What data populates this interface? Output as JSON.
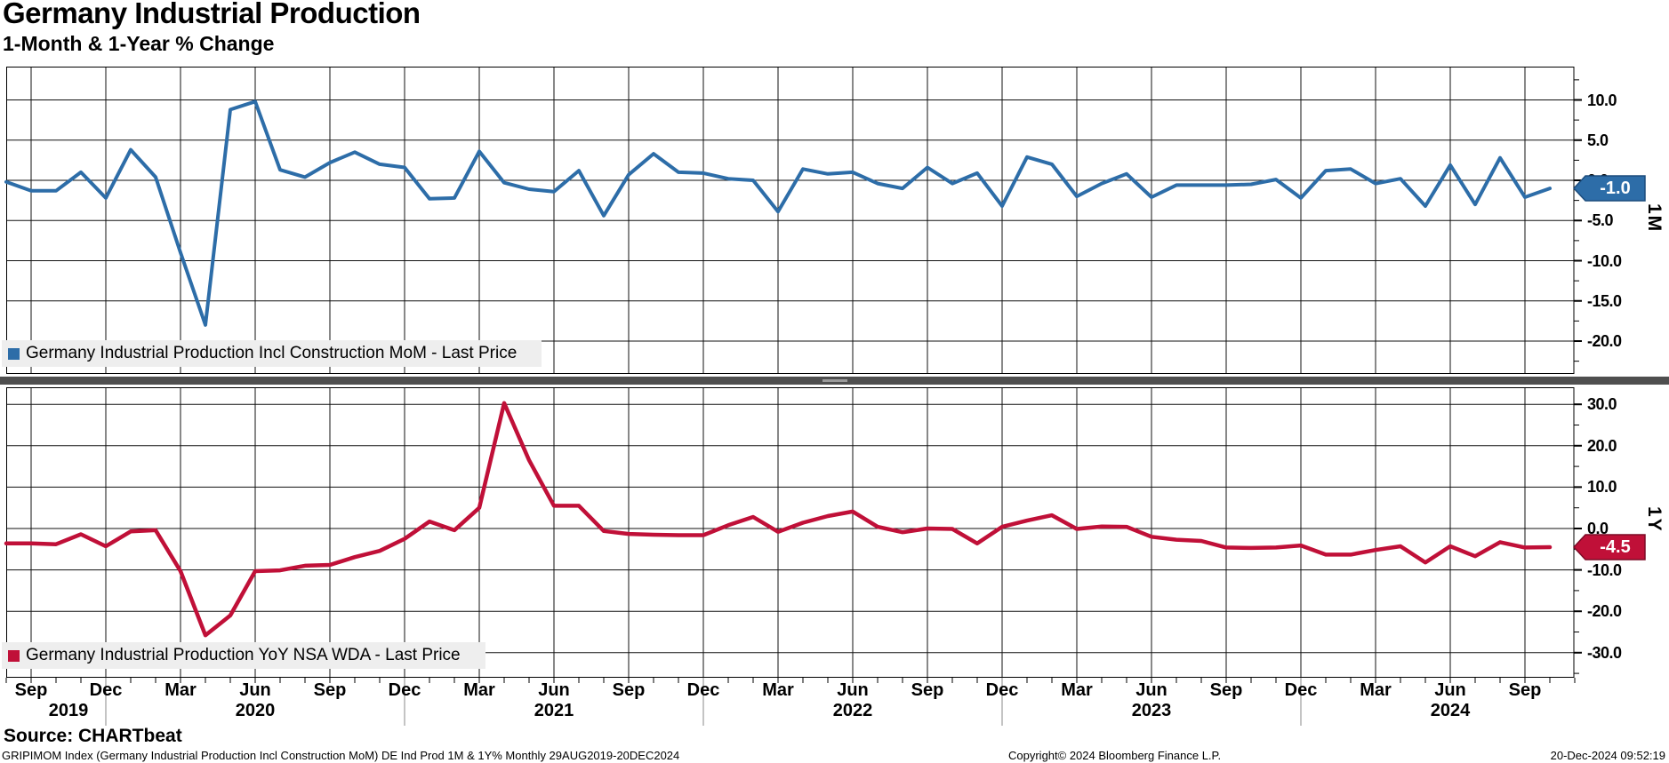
{
  "header": {
    "title": "Germany Industrial Production",
    "subtitle": "1-Month & 1-Year % Change"
  },
  "footer": {
    "source": "Source: CHARTbeat",
    "description": "GRIPIMOM Index (Germany Industrial Production Incl Construction MoM) DE Ind Prod 1M & 1Y%  Monthly 29AUG2019-20DEC2024",
    "copyright": "Copyright© 2024 Bloomberg Finance L.P.",
    "timestamp": "20-Dec-2024 09:52:19"
  },
  "chart_data": {
    "type": "line",
    "title": "Germany Industrial Production",
    "subtitle": "1-Month & 1-Year % Change",
    "x_axis": {
      "range": "Aug 2019 - Oct 2024",
      "frequency": "Monthly",
      "first_label_month_index": 1,
      "label_every_months": 3,
      "month_tick_labels": [
        "Sep",
        "Dec",
        "Mar",
        "Jun",
        "Sep",
        "Dec",
        "Mar",
        "Jun",
        "Sep",
        "Dec",
        "Mar",
        "Jun",
        "Sep",
        "Dec",
        "Mar",
        "Jun",
        "Sep",
        "Dec",
        "Mar",
        "Jun",
        "Sep"
      ],
      "year_labels": [
        {
          "text": "2019",
          "month_index": 2.5
        },
        {
          "text": "2020",
          "month_index": 10
        },
        {
          "text": "2021",
          "month_index": 22
        },
        {
          "text": "2022",
          "month_index": 34
        },
        {
          "text": "2023",
          "month_index": 46
        },
        {
          "text": "2024",
          "month_index": 58
        }
      ],
      "year_separator_month_indices": [
        4,
        16,
        28,
        40,
        52
      ]
    },
    "panels": [
      {
        "id": "1M",
        "axis_title": "1M",
        "legend": "Germany Industrial Production Incl Construction MoM - Last Price",
        "color": "#2d6da8",
        "flag": {
          "label": "-1.0",
          "value": -1.0,
          "fill": "#2d6da8",
          "border": "#1c4c7c"
        },
        "ylim": [
          -24.1,
          14.15
        ],
        "minor_tick_step": 2.5,
        "grid": true,
        "legend_position": "bottom-left",
        "y_ticks": [
          {
            "label": "10.0",
            "value": 10
          },
          {
            "label": "5.0",
            "value": 5
          },
          {
            "label": "0.0",
            "value": 0
          },
          {
            "label": "-5.0",
            "value": -5
          },
          {
            "label": "-10.0",
            "value": -10
          },
          {
            "label": "-15.0",
            "value": -15
          },
          {
            "label": "-20.0",
            "value": -20
          }
        ],
        "values": [
          -0.2,
          -1.3,
          -1.3,
          1.0,
          -2.2,
          3.8,
          0.4,
          -9.0,
          -18.0,
          8.8,
          9.8,
          1.3,
          0.4,
          2.2,
          3.5,
          2.0,
          1.6,
          -2.3,
          -2.2,
          3.6,
          -0.3,
          -1.1,
          -1.4,
          1.2,
          -4.4,
          0.7,
          3.3,
          1.0,
          0.9,
          0.2,
          0.0,
          -3.9,
          1.4,
          0.8,
          1.0,
          -0.4,
          -1.0,
          1.6,
          -0.4,
          0.9,
          -3.2,
          2.9,
          2.0,
          -2.0,
          -0.4,
          0.8,
          -2.1,
          -0.6,
          -0.6,
          -0.6,
          -0.5,
          0.1,
          -2.2,
          1.2,
          1.4,
          -0.4,
          0.2,
          -3.2,
          1.9,
          -3.0,
          2.8,
          -2.1,
          -1.0
        ]
      },
      {
        "id": "1Y",
        "axis_title": "1Y",
        "legend": "Germany Industrial Production YoY NSA WDA - Last Price",
        "color": "#c01038",
        "flag": {
          "label": "-4.5",
          "value": -4.5,
          "fill": "#c01038",
          "border": "#7c0a26"
        },
        "ylim": [
          -36.05,
          34.12
        ],
        "minor_tick_step": 5,
        "grid": true,
        "legend_position": "bottom-left",
        "y_ticks": [
          {
            "label": "30.0",
            "value": 30
          },
          {
            "label": "20.0",
            "value": 20
          },
          {
            "label": "10.0",
            "value": 10
          },
          {
            "label": "0.0",
            "value": 0
          },
          {
            "label": "-10.0",
            "value": -10
          },
          {
            "label": "-20.0",
            "value": -20
          },
          {
            "label": "-30.0",
            "value": -30
          }
        ],
        "values": [
          -3.6,
          -3.6,
          -3.8,
          -1.4,
          -4.3,
          -0.7,
          -0.4,
          -10.3,
          -25.8,
          -21.0,
          -10.3,
          -10.1,
          -9.0,
          -8.8,
          -6.9,
          -5.4,
          -2.5,
          1.7,
          -0.4,
          5.0,
          30.3,
          16.5,
          5.5,
          5.5,
          -0.6,
          -1.3,
          -1.5,
          -1.6,
          -1.6,
          0.8,
          2.8,
          -0.8,
          1.4,
          3.0,
          4.1,
          0.4,
          -0.9,
          0.0,
          -0.1,
          -3.6,
          0.4,
          1.9,
          3.2,
          -0.1,
          0.5,
          0.4,
          -2.0,
          -2.7,
          -3.0,
          -4.6,
          -4.7,
          -4.6,
          -4.1,
          -6.3,
          -6.3,
          -5.2,
          -4.3,
          -8.2,
          -4.3,
          -6.7,
          -3.3,
          -4.6,
          -4.5
        ]
      }
    ]
  }
}
